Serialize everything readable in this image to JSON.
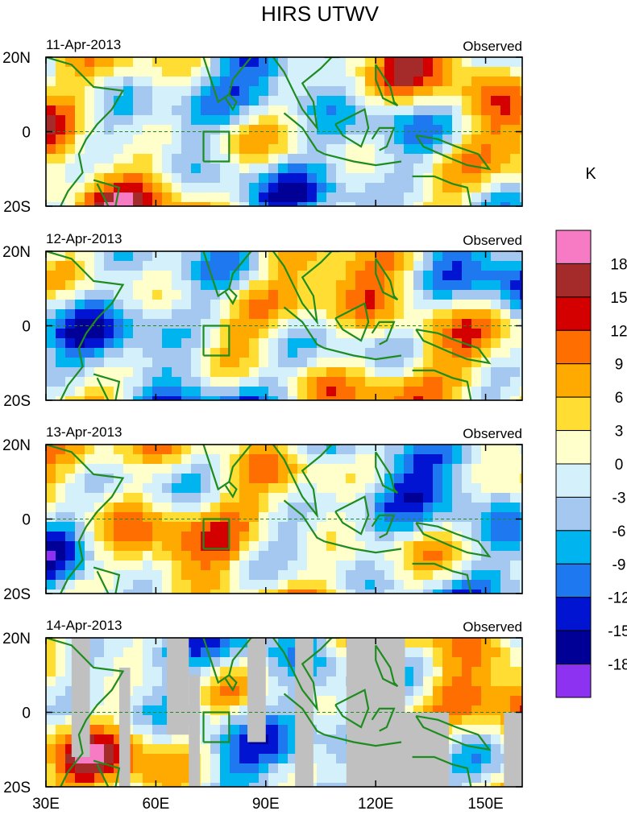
{
  "chart_data": {
    "type": "heatmap",
    "title": "HIRS UTWV",
    "units_label": "K",
    "panels": [
      {
        "date": "11-Apr-2013",
        "label": "Observed"
      },
      {
        "date": "12-Apr-2013",
        "label": "Observed"
      },
      {
        "date": "13-Apr-2013",
        "label": "Observed"
      },
      {
        "date": "14-Apr-2013",
        "label": "Observed"
      }
    ],
    "x_ticks": [
      "30E",
      "60E",
      "90E",
      "120E",
      "150E"
    ],
    "x_tick_values": [
      30,
      60,
      90,
      120,
      150
    ],
    "xlim": [
      30,
      160
    ],
    "y_ticks": [
      "20N",
      "0",
      "20S"
    ],
    "y_tick_values": [
      20,
      0,
      -20
    ],
    "ylim": [
      -20,
      20
    ],
    "colorbar": {
      "levels": [
        "18",
        "15",
        "12",
        "9",
        "6",
        "3",
        "0",
        "-3",
        "-6",
        "-9",
        "-12",
        "-15",
        "-18"
      ],
      "colors": [
        "#f77bc4",
        "#a52a2a",
        "#d40000",
        "#ff6e00",
        "#ffaa00",
        "#ffdd33",
        "#ffffcc",
        "#d4f0fa",
        "#a5c8f0",
        "#00b4f0",
        "#1e78f0",
        "#0014d2",
        "#000096",
        "#8c32f0"
      ]
    },
    "features": {
      "equator_dashed": true,
      "missing_data_color": "#c0c0c0",
      "coastline_color": "#1e8c1e"
    }
  }
}
